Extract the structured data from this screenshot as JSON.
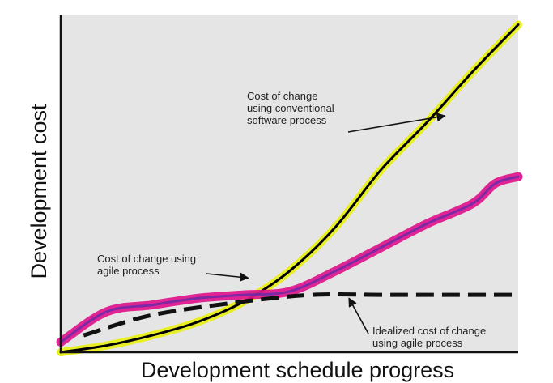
{
  "chart_data": {
    "type": "line",
    "title": "",
    "xlabel": "Development schedule progress",
    "ylabel": "Development cost",
    "xlim": [
      0,
      100
    ],
    "ylim": [
      0,
      100
    ],
    "grid": false,
    "background": "#e5e5e5",
    "series": [
      {
        "key": "conventional",
        "color": "#000000",
        "highlight_color": "#e8ef1a",
        "points": [
          [
            0,
            0
          ],
          [
            10,
            2
          ],
          [
            20,
            5
          ],
          [
            30,
            9
          ],
          [
            40,
            15
          ],
          [
            50,
            24
          ],
          [
            60,
            37
          ],
          [
            70,
            54
          ],
          [
            80,
            68
          ],
          [
            90,
            83
          ],
          [
            100,
            97
          ]
        ]
      },
      {
        "key": "agile",
        "color": "#6b2aa8",
        "highlight_color": "#e0148c",
        "points": [
          [
            0,
            3
          ],
          [
            10,
            12
          ],
          [
            20,
            14
          ],
          [
            30,
            16
          ],
          [
            40,
            17
          ],
          [
            50,
            18
          ],
          [
            60,
            24
          ],
          [
            70,
            31
          ],
          [
            80,
            38
          ],
          [
            90,
            44
          ],
          [
            95,
            50
          ],
          [
            100,
            52
          ]
        ]
      },
      {
        "key": "idealized",
        "color": "#111111",
        "dashed": true,
        "points": [
          [
            5,
            5
          ],
          [
            20,
            11
          ],
          [
            40,
            15
          ],
          [
            55,
            17
          ],
          [
            70,
            17
          ],
          [
            80,
            17
          ],
          [
            100,
            17
          ]
        ]
      }
    ],
    "annotations": {
      "conventional": {
        "lines": [
          "Cost of change",
          "using conventional",
          "software process"
        ],
        "arrow_to": [
          84,
          70
        ]
      },
      "agile": {
        "lines": [
          "Cost of change using",
          "agile process"
        ],
        "arrow_to": [
          41,
          22
        ]
      },
      "idealized": {
        "lines": [
          "Idealized cost of change",
          "using agile process"
        ],
        "arrow_to": [
          63,
          16
        ]
      }
    }
  }
}
